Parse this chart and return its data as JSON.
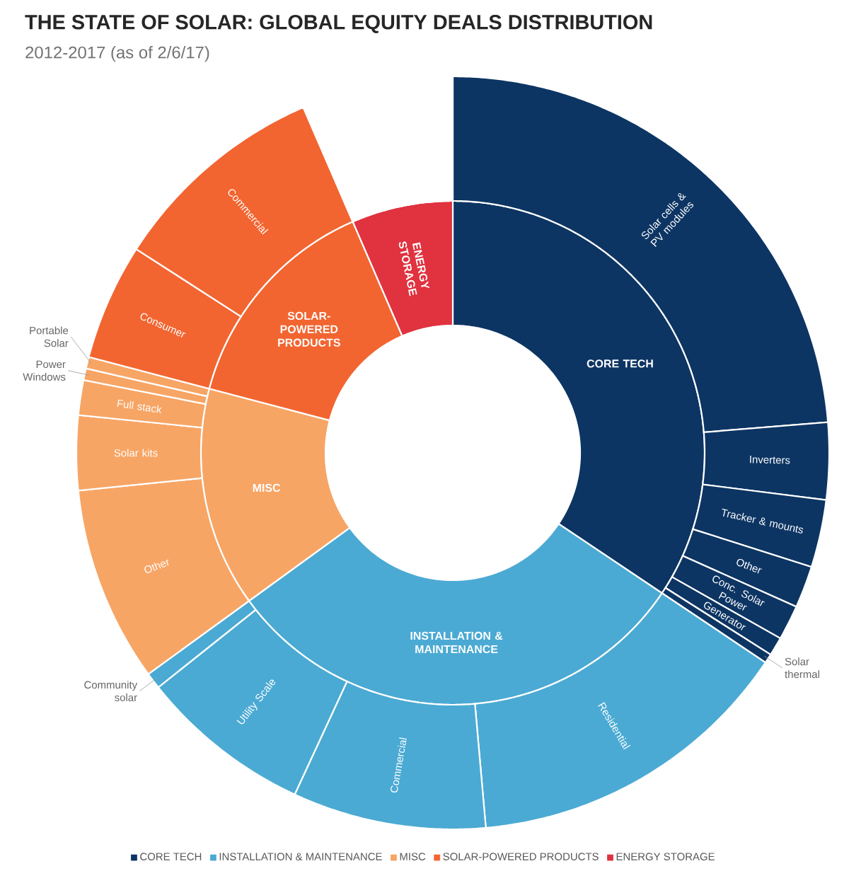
{
  "chart_data": [
    {
      "type": "donut",
      "legend": "bottom",
      "categories": [
        "CORE TECH",
        "INSTALLATION & MAINTENANCE",
        "MISC",
        "SOLAR-POWERED PRODUCTS",
        "ENERGY STORAGE"
      ],
      "values": [
        34.4,
        30.6,
        14.1,
        14.4,
        6.5
      ],
      "colors": [
        "#0d3563",
        "#4baad3",
        "#f7a565",
        "#f26531",
        "#e0323f"
      ]
    },
    {
      "type": "donut",
      "title": "THE STATE OF SOLAR: GLOBAL EQUITY DEALS DISTRIBUTION",
      "subtitle": "2012-2017 (as of 2/6/17)",
      "categories": [
        "Solar cells & PV modules",
        "Inverters",
        "Tracker & mounts",
        "Other",
        "Conc. Solar Power",
        "Generator",
        "Solar thermal",
        "Residential",
        "Commercial",
        "Utility Scale",
        "Community solar",
        "Other",
        "Solar kits",
        "Full stack",
        "Power Windows",
        "Portable Solar",
        "Consumer",
        "Commercial",
        null
      ],
      "values": [
        23.7,
        3.3,
        2.9,
        1.8,
        1.5,
        0.8,
        0.4,
        14.2,
        8.3,
        7.4,
        0.7,
        8.4,
        3.2,
        1.5,
        0.5,
        0.5,
        5.0,
        9.4,
        6.5
      ],
      "colors": [
        "#0d3563",
        "#0d3563",
        "#0d3563",
        "#0d3563",
        "#0d3563",
        "#0d3563",
        "#0d3563",
        "#4baad3",
        "#4baad3",
        "#4baad3",
        "#4baad3",
        "#f7a565",
        "#f7a565",
        "#f7a565",
        "#f7a565",
        "#f7a565",
        "#f26531",
        "#f26531",
        null
      ]
    }
  ]
}
